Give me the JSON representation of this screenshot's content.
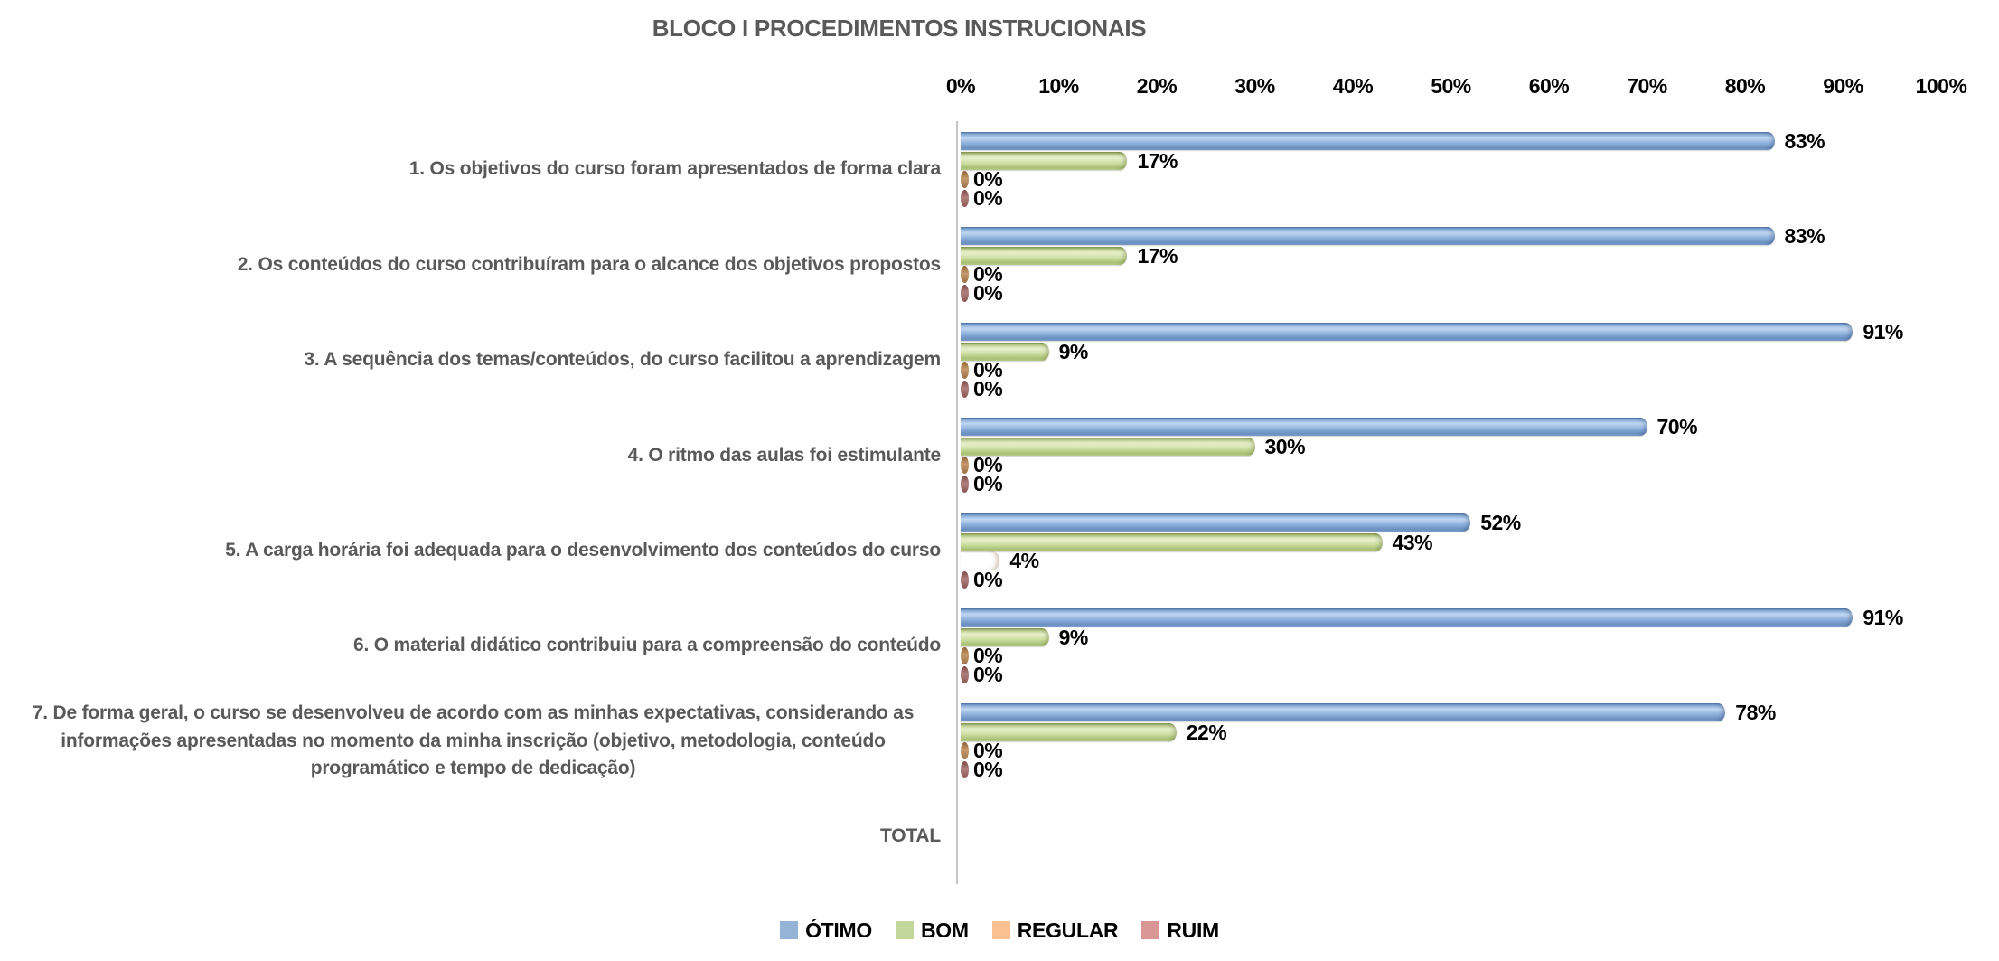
{
  "chart_data": {
    "type": "bar",
    "orientation": "horizontal",
    "title": "BLOCO I PROCEDIMENTOS INSTRUCIONAIS",
    "title_color": "#595959",
    "value_axis": {
      "position": "top",
      "min": 0,
      "max": 100,
      "tick_step": 10,
      "tick_labels": [
        "0%",
        "10%",
        "20%",
        "30%",
        "40%",
        "50%",
        "60%",
        "70%",
        "80%",
        "90%",
        "100%"
      ]
    },
    "gridlines": false,
    "data_labels": true,
    "categories": [
      "1. Os objetivos do curso foram apresentados de forma clara",
      "2. Os conteúdos do curso contribuíram para o alcance dos objetivos propostos",
      "3. A sequência dos temas/conteúdos, do curso facilitou a aprendizagem",
      "4. O ritmo das aulas foi estimulante",
      "5. A carga horária foi adequada para o desenvolvimento dos conteúdos do curso",
      "6. O material didático contribuiu para a compreensão do conteúdo",
      "7. De forma geral, o curso se desenvolveu de acordo com as minhas expectativas, considerando as informações apresentadas no momento da minha inscrição (objetivo, metodologia, conteúdo programático e tempo de dedicação)",
      "TOTAL"
    ],
    "series": [
      {
        "name": "ÓTIMO",
        "color": "#95B3D7",
        "values": [
          83,
          83,
          91,
          70,
          52,
          91,
          78,
          null
        ]
      },
      {
        "name": "BOM",
        "color": "#C3D69B",
        "values": [
          17,
          17,
          9,
          30,
          43,
          9,
          22,
          null
        ]
      },
      {
        "name": "REGULAR",
        "color": "#FAC090",
        "values": [
          0,
          0,
          0,
          0,
          4,
          0,
          0,
          null
        ]
      },
      {
        "name": "RUIM",
        "color": "#D99694",
        "values": [
          0,
          0,
          0,
          0,
          0,
          0,
          0,
          null
        ]
      }
    ],
    "legend": {
      "position": "bottom",
      "entries": [
        "ÓTIMO",
        "BOM",
        "REGULAR",
        "RUIM"
      ]
    }
  }
}
